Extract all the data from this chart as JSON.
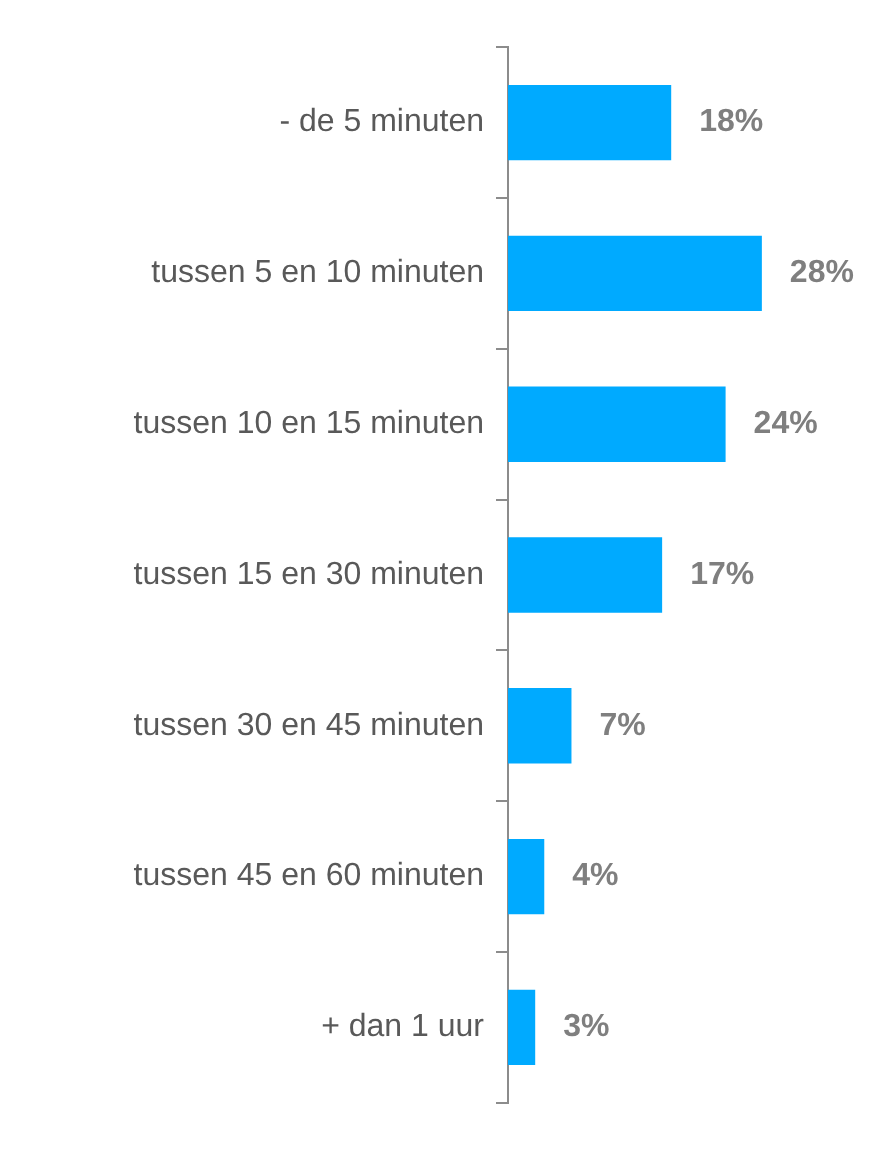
{
  "chart_data": {
    "type": "bar",
    "orientation": "horizontal",
    "categories": [
      "- de 5 minuten",
      "tussen 5 en 10 minuten",
      "tussen 10 en 15 minuten",
      "tussen 15 en 30 minuten",
      "tussen 30 en 45 minuten",
      "tussen 45 en 60 minuten",
      "+ dan 1 uur"
    ],
    "values": [
      18,
      28,
      24,
      17,
      7,
      4,
      3
    ],
    "value_labels": [
      "18%",
      "28%",
      "24%",
      "17%",
      "7%",
      "4%",
      "3%"
    ],
    "color": "#00aaff",
    "legend": false,
    "tick_labels": "y"
  }
}
